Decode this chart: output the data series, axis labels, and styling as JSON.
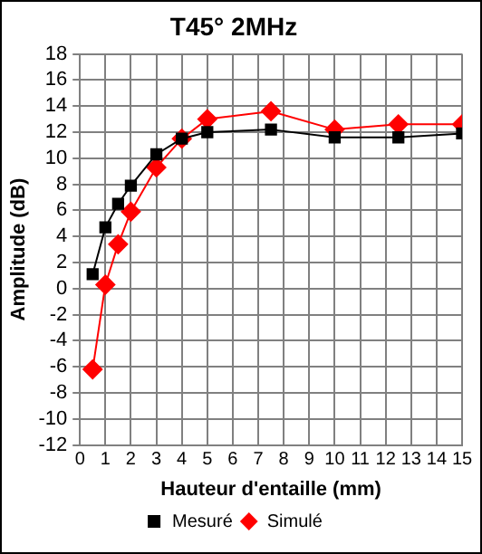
{
  "chart_data": {
    "type": "line",
    "title": "T45° 2MHz",
    "xlabel": "Hauteur d'entaille (mm)",
    "ylabel": "Amplitude (dB)",
    "xlim": [
      0,
      15
    ],
    "xticks": [
      0,
      1,
      2,
      3,
      4,
      5,
      6,
      7,
      8,
      9,
      10,
      11,
      12,
      13,
      14,
      15
    ],
    "ylim": [
      -12,
      18
    ],
    "yticks": [
      -12,
      -10,
      -8,
      -6,
      -4,
      -2,
      0,
      2,
      4,
      6,
      8,
      10,
      12,
      14,
      16,
      18
    ],
    "grid": true,
    "legend": "bottom",
    "line_style": "solid",
    "series": [
      {
        "name": "Mesuré",
        "color": "#000000",
        "marker": "square",
        "x": [
          0.5,
          1,
          1.5,
          2,
          3,
          4,
          5,
          7.5,
          10,
          12.5,
          15
        ],
        "values": [
          1.1,
          4.7,
          6.5,
          7.9,
          10.3,
          11.5,
          12,
          12.2,
          11.6,
          11.6,
          11.9
        ]
      },
      {
        "name": "Simulé",
        "color": "#ff0000",
        "marker": "diamond",
        "x": [
          0.5,
          1,
          1.5,
          2,
          3,
          4,
          5,
          7.5,
          10,
          12.5,
          15
        ],
        "values": [
          -6.2,
          0.3,
          3.4,
          5.9,
          9.3,
          11.5,
          13,
          13.6,
          12.2,
          12.6,
          12.6
        ]
      }
    ]
  }
}
